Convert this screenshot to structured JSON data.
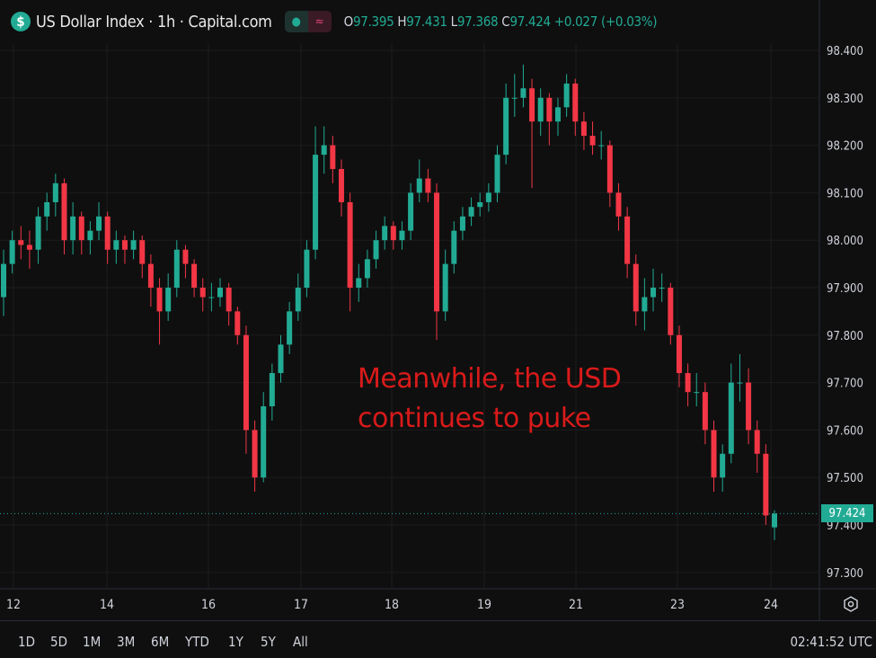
{
  "header": {
    "logo_symbol": "$",
    "title": "US Dollar Index · 1h · Capital.com",
    "ohlc": {
      "o_label": "O",
      "o": "97.395",
      "h_label": "H",
      "h": "97.431",
      "l_label": "L",
      "l": "97.368",
      "c_label": "C",
      "c": "97.424",
      "change": "+0.027 (+0.03%)"
    }
  },
  "annotation": {
    "line1": "Meanwhile, the USD",
    "line2": "continues to puke",
    "color": "#d91a1a"
  },
  "current_price_label": "97.424",
  "range_buttons": [
    "1D",
    "5D",
    "1M",
    "3M",
    "6M",
    "YTD",
    "1Y",
    "5Y",
    "All"
  ],
  "clock": "02:41:52 UTC",
  "colors": {
    "background": "#0f0f0f",
    "up": "#22ab94",
    "down": "#f23645",
    "grid": "#1c1c1c"
  },
  "chart_data": {
    "type": "candlestick",
    "interval": "1h",
    "y_ticks": [
      "98.400",
      "98.300",
      "98.200",
      "98.100",
      "98.000",
      "97.900",
      "97.800",
      "97.700",
      "97.600",
      "97.500",
      "97.400",
      "97.300"
    ],
    "ylim": [
      97.25,
      98.45
    ],
    "x_ticks": [
      "12",
      "14",
      "16",
      "17",
      "18",
      "19",
      "21",
      "23",
      "24"
    ],
    "grid": true,
    "last_price": 97.424,
    "candles_ohlc": [
      [
        97.88,
        97.98,
        97.84,
        97.95
      ],
      [
        97.95,
        98.02,
        97.93,
        98.0
      ],
      [
        98.0,
        98.03,
        97.96,
        97.99
      ],
      [
        97.99,
        98.02,
        97.94,
        97.98
      ],
      [
        97.98,
        98.07,
        97.95,
        98.05
      ],
      [
        98.05,
        98.1,
        98.02,
        98.08
      ],
      [
        98.08,
        98.14,
        98.05,
        98.12
      ],
      [
        98.12,
        98.13,
        97.97,
        98.0
      ],
      [
        98.0,
        98.08,
        97.97,
        98.05
      ],
      [
        98.05,
        98.06,
        97.97,
        98.0
      ],
      [
        98.0,
        98.04,
        97.97,
        98.02
      ],
      [
        98.02,
        98.08,
        98.0,
        98.05
      ],
      [
        98.05,
        98.06,
        97.95,
        97.98
      ],
      [
        97.98,
        98.02,
        97.95,
        98.0
      ],
      [
        98.0,
        98.01,
        97.95,
        97.98
      ],
      [
        97.98,
        98.02,
        97.96,
        98.0
      ],
      [
        98.0,
        98.01,
        97.92,
        97.95
      ],
      [
        97.95,
        97.97,
        97.86,
        97.9
      ],
      [
        97.9,
        97.92,
        97.78,
        97.85
      ],
      [
        97.85,
        97.93,
        97.83,
        97.9
      ],
      [
        97.9,
        98.0,
        97.88,
        97.98
      ],
      [
        97.98,
        97.99,
        97.92,
        97.95
      ],
      [
        97.95,
        97.96,
        97.88,
        97.9
      ],
      [
        97.9,
        97.92,
        97.85,
        97.88
      ],
      [
        97.88,
        97.91,
        97.85,
        97.88
      ],
      [
        97.88,
        97.92,
        97.86,
        97.9
      ],
      [
        97.9,
        97.91,
        97.82,
        97.85
      ],
      [
        97.85,
        97.86,
        97.78,
        97.8
      ],
      [
        97.8,
        97.82,
        97.55,
        97.6
      ],
      [
        97.6,
        97.62,
        97.47,
        97.5
      ],
      [
        97.5,
        97.68,
        97.49,
        97.65
      ],
      [
        97.65,
        97.74,
        97.62,
        97.72
      ],
      [
        97.72,
        97.8,
        97.7,
        97.78
      ],
      [
        97.78,
        97.87,
        97.76,
        97.85
      ],
      [
        97.85,
        97.93,
        97.83,
        97.9
      ],
      [
        97.9,
        98.0,
        97.88,
        97.98
      ],
      [
        97.98,
        98.24,
        97.96,
        98.18
      ],
      [
        98.18,
        98.24,
        98.14,
        98.2
      ],
      [
        98.2,
        98.22,
        98.12,
        98.15
      ],
      [
        98.15,
        98.17,
        98.05,
        98.08
      ],
      [
        98.08,
        98.1,
        97.85,
        97.9
      ],
      [
        97.9,
        97.95,
        97.87,
        97.92
      ],
      [
        97.92,
        97.98,
        97.9,
        97.96
      ],
      [
        97.96,
        98.02,
        97.94,
        98.0
      ],
      [
        98.0,
        98.05,
        97.98,
        98.03
      ],
      [
        98.03,
        98.04,
        97.98,
        98.0
      ],
      [
        98.0,
        98.04,
        97.98,
        98.02
      ],
      [
        98.02,
        98.12,
        98.0,
        98.1
      ],
      [
        98.1,
        98.17,
        98.08,
        98.13
      ],
      [
        98.13,
        98.15,
        98.08,
        98.1
      ],
      [
        98.1,
        98.12,
        97.79,
        97.85
      ],
      [
        97.85,
        97.98,
        97.83,
        97.95
      ],
      [
        97.95,
        98.04,
        97.93,
        98.02
      ],
      [
        98.02,
        98.07,
        98.0,
        98.05
      ],
      [
        98.05,
        98.09,
        98.03,
        98.07
      ],
      [
        98.07,
        98.1,
        98.05,
        98.08
      ],
      [
        98.08,
        98.12,
        98.06,
        98.1
      ],
      [
        98.1,
        98.2,
        98.08,
        98.18
      ],
      [
        98.18,
        98.33,
        98.16,
        98.3
      ],
      [
        98.3,
        98.35,
        98.26,
        98.3
      ],
      [
        98.3,
        98.37,
        98.28,
        98.32
      ],
      [
        98.32,
        98.34,
        98.11,
        98.25
      ],
      [
        98.25,
        98.32,
        98.22,
        98.3
      ],
      [
        98.3,
        98.31,
        98.2,
        98.25
      ],
      [
        98.25,
        98.3,
        98.22,
        98.28
      ],
      [
        98.28,
        98.35,
        98.26,
        98.33
      ],
      [
        98.33,
        98.34,
        98.22,
        98.25
      ],
      [
        98.25,
        98.27,
        98.19,
        98.22
      ],
      [
        98.22,
        98.25,
        98.18,
        98.2
      ],
      [
        98.2,
        98.23,
        98.17,
        98.2
      ],
      [
        98.2,
        98.21,
        98.07,
        98.1
      ],
      [
        98.1,
        98.12,
        98.02,
        98.05
      ],
      [
        98.05,
        98.07,
        97.92,
        97.95
      ],
      [
        97.95,
        97.97,
        97.82,
        97.85
      ],
      [
        97.85,
        97.92,
        97.81,
        97.88
      ],
      [
        97.88,
        97.94,
        97.85,
        97.9
      ],
      [
        97.9,
        97.93,
        97.87,
        97.9
      ],
      [
        97.9,
        97.91,
        97.78,
        97.8
      ],
      [
        97.8,
        97.82,
        97.69,
        97.72
      ],
      [
        97.72,
        97.74,
        97.65,
        97.68
      ],
      [
        97.68,
        97.72,
        97.65,
        97.68
      ],
      [
        97.68,
        97.7,
        97.57,
        97.6
      ],
      [
        97.6,
        97.62,
        97.47,
        97.5
      ],
      [
        97.5,
        97.57,
        97.47,
        97.55
      ],
      [
        97.55,
        97.74,
        97.53,
        97.7
      ],
      [
        97.7,
        97.76,
        97.66,
        97.7
      ],
      [
        97.7,
        97.73,
        97.57,
        97.6
      ],
      [
        97.6,
        97.62,
        97.51,
        97.55
      ],
      [
        97.55,
        97.57,
        97.4,
        97.42
      ],
      [
        97.395,
        97.431,
        97.368,
        97.424
      ]
    ]
  }
}
